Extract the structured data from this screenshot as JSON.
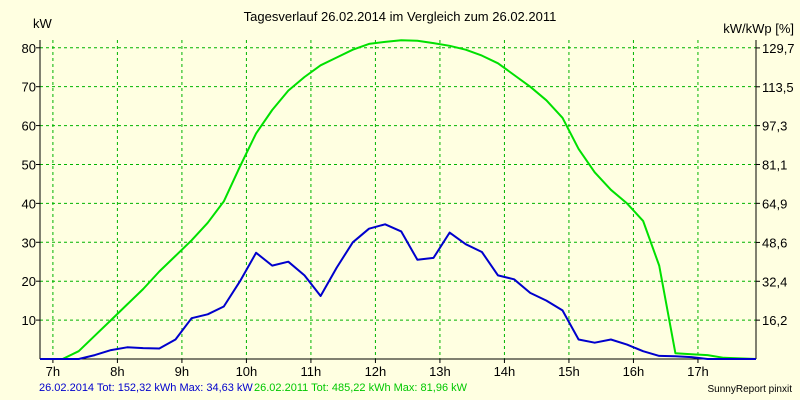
{
  "title": "Tagesverlauf 26.02.2014 im Vergleich zum 26.02.2011",
  "y_unit_left": "kW",
  "y_unit_right": "kW/kWp [%]",
  "footer": {
    "series1": "26.02.2014 Tot: 152,32 kWh Max: 34,63 kW",
    "series2": "26.02.2011 Tot: 485,22 kWh Max: 81,96 kW",
    "brand": "SunnyReport pinxit"
  },
  "chart_data": {
    "type": "line",
    "x_unit": "hours",
    "xlim": [
      6.8,
      17.9
    ],
    "ylim": [
      0,
      82
    ],
    "y2lim": [
      0,
      133
    ],
    "grid": true,
    "x_ticks": [
      7,
      8,
      9,
      10,
      11,
      12,
      13,
      14,
      15,
      16,
      17
    ],
    "x_tick_labels": [
      "7h",
      "8h",
      "9h",
      "10h",
      "11h",
      "12h",
      "13h",
      "14h",
      "15h",
      "16h",
      "17h"
    ],
    "y_ticks": [
      10,
      20,
      30,
      40,
      50,
      60,
      70,
      80
    ],
    "y_tick_labels": [
      "10",
      "20",
      "30",
      "40",
      "50",
      "60",
      "70",
      "80"
    ],
    "y2_ticks": [
      16.2,
      32.4,
      48.6,
      64.9,
      81.1,
      97.3,
      113.5,
      129.7
    ],
    "y2_tick_labels": [
      "16,2",
      "32,4",
      "48,6",
      "64,9",
      "81,1",
      "97,3",
      "113,5",
      "129,7"
    ],
    "series": [
      {
        "name": "26.02.2011",
        "color": "#00e000",
        "points": [
          [
            6.8,
            0
          ],
          [
            7.15,
            0
          ],
          [
            7.4,
            2
          ],
          [
            7.65,
            6
          ],
          [
            7.9,
            10
          ],
          [
            8.15,
            14
          ],
          [
            8.4,
            18
          ],
          [
            8.65,
            22.5
          ],
          [
            8.9,
            26.5
          ],
          [
            9.15,
            30.5
          ],
          [
            9.4,
            35
          ],
          [
            9.65,
            40.5
          ],
          [
            9.9,
            49.5
          ],
          [
            10.15,
            58
          ],
          [
            10.4,
            64
          ],
          [
            10.65,
            69
          ],
          [
            10.9,
            72.5
          ],
          [
            11.15,
            75.5
          ],
          [
            11.4,
            77.5
          ],
          [
            11.65,
            79.5
          ],
          [
            11.9,
            81
          ],
          [
            12.15,
            81.5
          ],
          [
            12.4,
            81.96
          ],
          [
            12.65,
            81.8
          ],
          [
            12.9,
            81.2
          ],
          [
            13.15,
            80.5
          ],
          [
            13.4,
            79.5
          ],
          [
            13.65,
            78
          ],
          [
            13.9,
            76
          ],
          [
            14.15,
            73
          ],
          [
            14.4,
            70
          ],
          [
            14.65,
            66.5
          ],
          [
            14.9,
            62
          ],
          [
            15.15,
            54
          ],
          [
            15.4,
            48
          ],
          [
            15.65,
            43.5
          ],
          [
            15.9,
            40
          ],
          [
            16.15,
            35.5
          ],
          [
            16.4,
            24
          ],
          [
            16.65,
            1.5
          ],
          [
            16.9,
            1.2
          ],
          [
            17.15,
            1
          ],
          [
            17.4,
            0.3
          ],
          [
            17.9,
            0
          ]
        ]
      },
      {
        "name": "26.02.2014",
        "color": "#0000cc",
        "points": [
          [
            6.8,
            0
          ],
          [
            7.4,
            0
          ],
          [
            7.65,
            1
          ],
          [
            7.9,
            2.3
          ],
          [
            8.15,
            3
          ],
          [
            8.4,
            2.8
          ],
          [
            8.65,
            2.7
          ],
          [
            8.9,
            5
          ],
          [
            9.15,
            10.5
          ],
          [
            9.4,
            11.5
          ],
          [
            9.65,
            13.5
          ],
          [
            9.9,
            20
          ],
          [
            10.15,
            27.3
          ],
          [
            10.4,
            24
          ],
          [
            10.65,
            25
          ],
          [
            10.9,
            21.5
          ],
          [
            11.15,
            16.2
          ],
          [
            11.4,
            23.5
          ],
          [
            11.65,
            30
          ],
          [
            11.9,
            33.5
          ],
          [
            12.15,
            34.63
          ],
          [
            12.4,
            32.8
          ],
          [
            12.65,
            25.5
          ],
          [
            12.9,
            26
          ],
          [
            13.15,
            32.5
          ],
          [
            13.4,
            29.5
          ],
          [
            13.65,
            27.5
          ],
          [
            13.9,
            21.5
          ],
          [
            14.15,
            20.5
          ],
          [
            14.4,
            17
          ],
          [
            14.65,
            15
          ],
          [
            14.9,
            12.5
          ],
          [
            15.15,
            5
          ],
          [
            15.4,
            4.2
          ],
          [
            15.65,
            5
          ],
          [
            15.9,
            3.7
          ],
          [
            16.15,
            2
          ],
          [
            16.4,
            0.8
          ],
          [
            16.65,
            0.7
          ],
          [
            16.9,
            0.5
          ],
          [
            17.15,
            0
          ],
          [
            17.9,
            0
          ]
        ]
      }
    ]
  }
}
